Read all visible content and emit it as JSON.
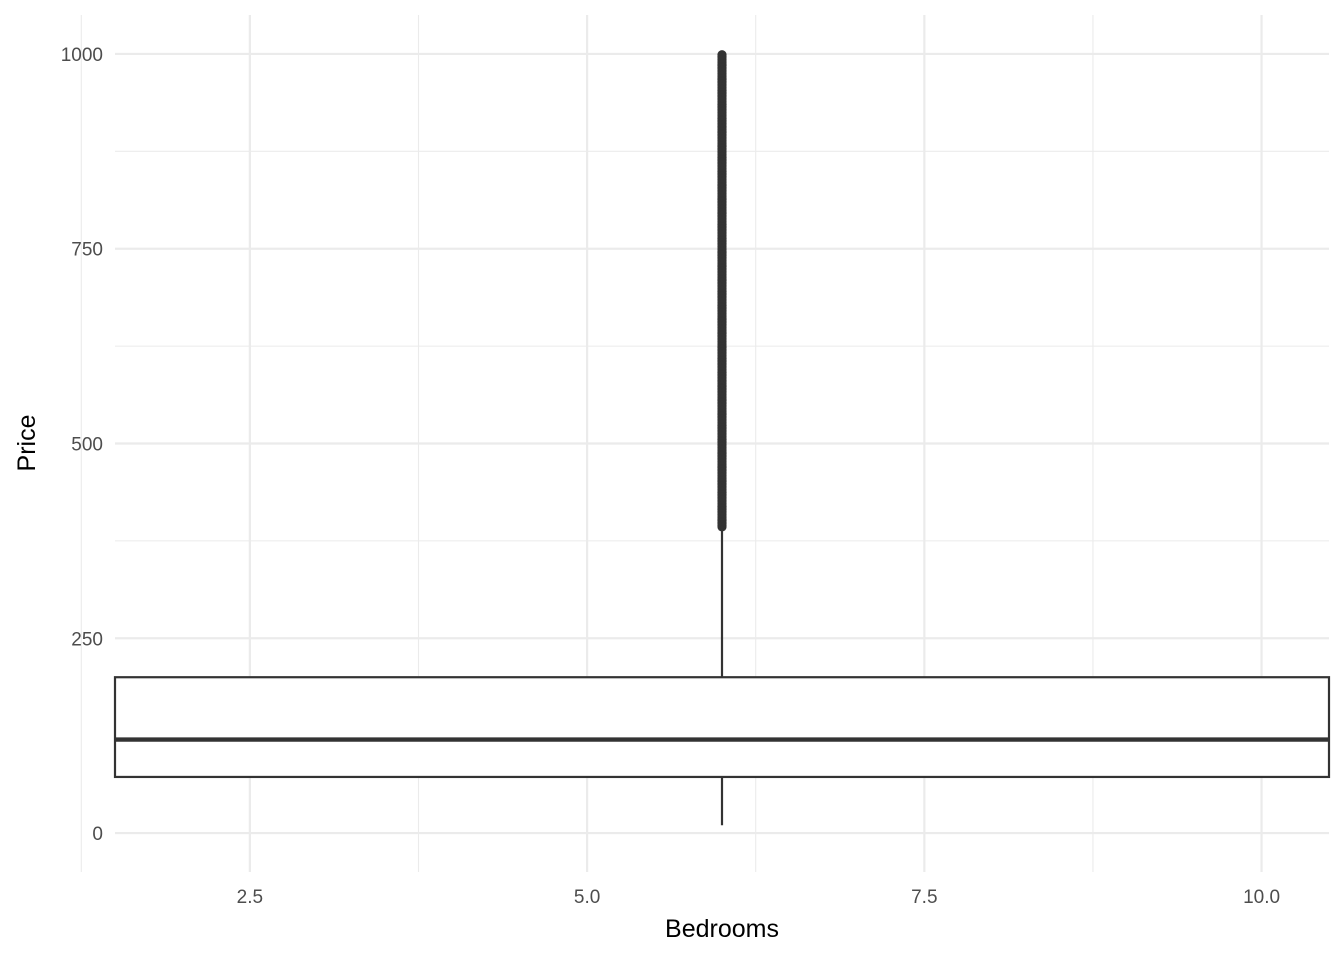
{
  "chart_data": {
    "type": "boxplot",
    "title": "",
    "xlabel": "Bedrooms",
    "ylabel": "Price",
    "xlim": [
      1.5,
      10.5
    ],
    "ylim": [
      -50,
      1050
    ],
    "x_ticks": [
      2.5,
      5.0,
      7.5,
      10.0
    ],
    "x_tick_labels": [
      "2.5",
      "5.0",
      "7.5",
      "10.0"
    ],
    "y_ticks": [
      0,
      250,
      500,
      750,
      1000
    ],
    "y_tick_labels": [
      "0",
      "250",
      "500",
      "750",
      "1000"
    ],
    "grid": true,
    "box": {
      "x_center": 6,
      "x_from": 1.5,
      "x_to": 10.5,
      "whisker_low": 10,
      "q1": 72,
      "median": 120,
      "q3": 200,
      "whisker_high": 390,
      "outliers_from": 393,
      "outliers_to": 1000
    },
    "colors": {
      "box_line": "#333333",
      "grid": "#ebebeb",
      "outlier": "#333333"
    }
  }
}
